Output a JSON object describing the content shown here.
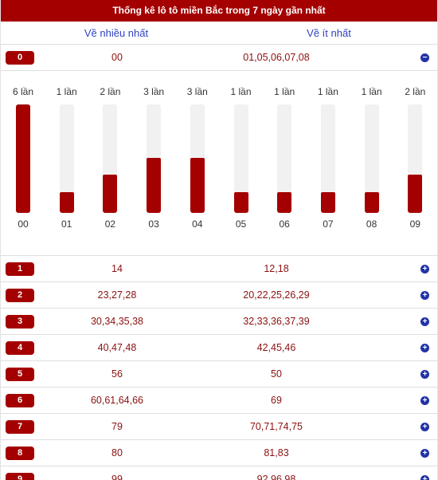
{
  "title": "Thống kê lô tô miền Bắc trong 7 ngày gần nhất",
  "headers": {
    "most": "Về nhiều nhất",
    "least": "Về ít nhất"
  },
  "colors": {
    "accent": "#a40000",
    "link": "#2f42c4",
    "toggle": "#2233a8"
  },
  "first_row": {
    "head": "0",
    "most": "00",
    "least": "01,05,06,07,08",
    "toggle_icon": "minus-circle-icon",
    "toggle_glyph": "−"
  },
  "chart_data": {
    "type": "bar",
    "categories": [
      "00",
      "01",
      "02",
      "03",
      "04",
      "05",
      "06",
      "07",
      "08",
      "09"
    ],
    "values": [
      6,
      1,
      2,
      3,
      3,
      1,
      1,
      1,
      1,
      2
    ],
    "count_labels": [
      "6 lần",
      "1 lần",
      "2 lần",
      "3 lần",
      "3 lần",
      "1 lần",
      "1 lần",
      "1 lần",
      "1 lần",
      "2 lần"
    ],
    "ylim": [
      0,
      6
    ],
    "title": "",
    "xlabel": "",
    "ylabel": ""
  },
  "rows": [
    {
      "head": "1",
      "most": "14",
      "least": "12,18",
      "toggle_glyph": "+"
    },
    {
      "head": "2",
      "most": "23,27,28",
      "least": "20,22,25,26,29",
      "toggle_glyph": "+"
    },
    {
      "head": "3",
      "most": "30,34,35,38",
      "least": "32,33,36,37,39",
      "toggle_glyph": "+"
    },
    {
      "head": "4",
      "most": "40,47,48",
      "least": "42,45,46",
      "toggle_glyph": "+"
    },
    {
      "head": "5",
      "most": "56",
      "least": "50",
      "toggle_glyph": "+"
    },
    {
      "head": "6",
      "most": "60,61,64,66",
      "least": "69",
      "toggle_glyph": "+"
    },
    {
      "head": "7",
      "most": "79",
      "least": "70,71,74,75",
      "toggle_glyph": "+"
    },
    {
      "head": "8",
      "most": "80",
      "least": "81,83",
      "toggle_glyph": "+"
    },
    {
      "head": "9",
      "most": "99",
      "least": "92,96,98",
      "toggle_glyph": "+"
    }
  ],
  "toggle_icon_expand": "plus-circle-icon"
}
